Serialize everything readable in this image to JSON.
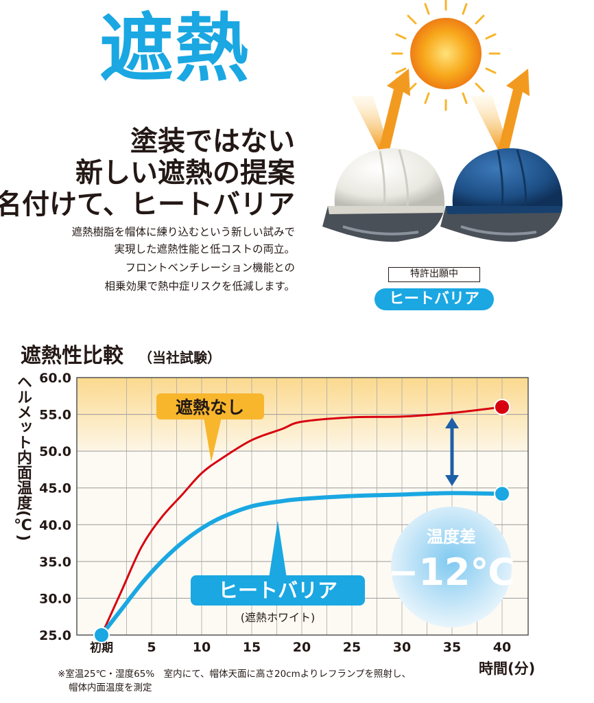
{
  "hero": {
    "title": "遮熱",
    "headline": [
      "塗装ではない",
      "新しい遮熱の提案",
      "名付けて、ヒートバリア"
    ],
    "description": [
      "遮熱樹脂を帽体に練り込むという新しい試みで",
      "実現した遮熱性能と低コストの両立。",
      "フロントベンチレーション機能との",
      "相乗効果で熱中症リスクを低減します。"
    ]
  },
  "product": {
    "patent_label": "特許出願中",
    "brand_label": "ヒートバリア",
    "icons": [
      "sun-icon",
      "heat-reflect-arrow-icon",
      "white-helmet-image",
      "navy-helmet-image"
    ],
    "colors": {
      "white_helmet": "#ecebe4",
      "navy_helmet": "#1d4f86",
      "visor": "#4a5058",
      "arrow": "#f29a1f"
    }
  },
  "section": {
    "title": "遮熱性比較",
    "subtitle": "（当社試験）"
  },
  "chart_data": {
    "type": "line",
    "ylabel": "ヘルメット内面温度(℃)",
    "xlabel": "時間(分)",
    "x_tick_labels": [
      "初期",
      "5",
      "10",
      "15",
      "20",
      "25",
      "30",
      "35",
      "40"
    ],
    "y_tick_labels": [
      "25.0",
      "30.0",
      "35.0",
      "40.0",
      "45.0",
      "50.0",
      "55.0",
      "60.0"
    ],
    "xlim": [
      0,
      42
    ],
    "ylim": [
      25,
      60
    ],
    "grid": true,
    "series": [
      {
        "name": "遮熱なし",
        "color": "#d7000f",
        "x": [
          0,
          2,
          4,
          6,
          8,
          10,
          12,
          15,
          18,
          20,
          25,
          30,
          35,
          40
        ],
        "y": [
          25,
          31,
          37,
          41,
          44,
          47,
          49,
          51.5,
          53,
          54,
          54.6,
          54.7,
          55.2,
          56
        ]
      },
      {
        "name": "ヒートバリア",
        "sublabel": "(遮熱ホワイト)",
        "color": "#1aa7e2",
        "x": [
          0,
          2,
          4,
          6,
          8,
          10,
          12,
          15,
          18,
          20,
          25,
          30,
          35,
          40
        ],
        "y": [
          25,
          28.5,
          32,
          35,
          37.5,
          39.5,
          41,
          42.5,
          43.2,
          43.5,
          43.9,
          44.1,
          44.3,
          44.2
        ]
      }
    ],
    "difference_badge": {
      "label": "温度差",
      "value": "−12℃"
    },
    "band_colors": [
      "#fbd98e",
      "#fdf6e6"
    ]
  },
  "footnote": [
    "※室温25℃・湿度65%　室内にて、帽体天面に高さ20cmよりレフランプを照射し、",
    "帽体内面温度を測定"
  ]
}
